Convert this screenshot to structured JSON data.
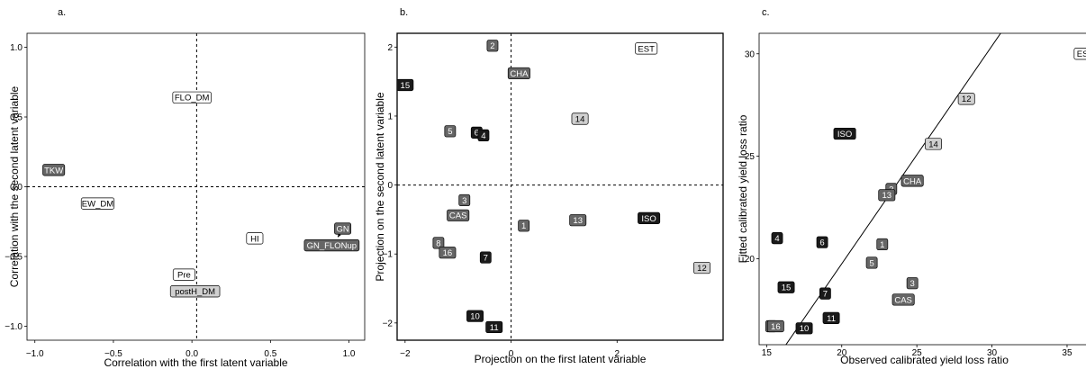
{
  "chart_data": [
    {
      "panel": "a.",
      "type": "scatter",
      "xlabel": "Correlation with the first latent variable",
      "ylabel": "Correlation with the second latent variable",
      "xlim": [
        -1.05,
        1.1
      ],
      "ylim": [
        -1.1,
        1.1
      ],
      "xticks": [
        -1.0,
        -0.5,
        0.0,
        0.5,
        1.0
      ],
      "yticks": [
        -1.0,
        -0.5,
        0.0,
        0.5,
        1.0
      ],
      "xtick_labels": [
        "−1.0",
        "−0.5",
        "0.0",
        "0.5",
        "1.0"
      ],
      "ytick_labels": [
        "−1.0",
        "−0.5",
        "0.0",
        "0.5",
        "1.0"
      ],
      "ref_lines": {
        "x": 0.03,
        "y": 0.0
      },
      "points": [
        {
          "label": "TKW",
          "x": -0.88,
          "y": 0.12,
          "style": "mid"
        },
        {
          "label": "FLO_DM",
          "x": 0.0,
          "y": 0.64,
          "style": "white"
        },
        {
          "label": "EW_DM",
          "x": -0.6,
          "y": -0.12,
          "style": "white"
        },
        {
          "label": "HI",
          "x": 0.4,
          "y": -0.37,
          "style": "white"
        },
        {
          "label": "GN",
          "x": 0.96,
          "y": -0.3,
          "style": "mid"
        },
        {
          "label": "GN_FLONup",
          "x": 0.89,
          "y": -0.42,
          "style": "mid"
        },
        {
          "label": "Pre",
          "x": -0.05,
          "y": -0.63,
          "style": "white"
        },
        {
          "label": "postH_DM",
          "x": 0.02,
          "y": -0.75,
          "style": "light"
        }
      ],
      "arrows": [
        {
          "x1": 0.96,
          "y1": -0.3,
          "x2": 0.93,
          "y2": -0.36
        }
      ]
    },
    {
      "panel": "b.",
      "type": "scatter",
      "xlabel": "Projection on the first latent variable",
      "ylabel": "Projection on the second latent variable",
      "xlim": [
        -2.15,
        4.0
      ],
      "ylim": [
        -2.25,
        2.2
      ],
      "xticks": [
        -2,
        0,
        2
      ],
      "yticks": [
        -2,
        -1,
        0,
        1,
        2
      ],
      "xtick_labels": [
        "−2",
        "0",
        "2"
      ],
      "ytick_labels": [
        "−2",
        "−1",
        "0",
        "1",
        "2"
      ],
      "ref_lines": {
        "x": 0.0,
        "y": 0.0
      },
      "points": [
        {
          "label": "2",
          "x": -0.35,
          "y": 2.02,
          "style": "mid"
        },
        {
          "label": "EST",
          "x": 2.55,
          "y": 1.98,
          "style": "white"
        },
        {
          "label": "15",
          "x": -2.0,
          "y": 1.45,
          "style": "black"
        },
        {
          "label": "CHA",
          "x": 0.15,
          "y": 1.62,
          "style": "mid"
        },
        {
          "label": "14",
          "x": 1.3,
          "y": 0.96,
          "style": "light"
        },
        {
          "label": "5",
          "x": -1.15,
          "y": 0.78,
          "style": "mid"
        },
        {
          "label": "6",
          "x": -0.65,
          "y": 0.76,
          "style": "black"
        },
        {
          "label": "4",
          "x": -0.52,
          "y": 0.72,
          "style": "black"
        },
        {
          "label": "3",
          "x": -0.88,
          "y": -0.22,
          "style": "mid"
        },
        {
          "label": "CAS",
          "x": -1.0,
          "y": -0.44,
          "style": "mid"
        },
        {
          "label": "1",
          "x": 0.24,
          "y": -0.59,
          "style": "mid"
        },
        {
          "label": "13",
          "x": 1.26,
          "y": -0.51,
          "style": "mid"
        },
        {
          "label": "ISO",
          "x": 2.6,
          "y": -0.48,
          "style": "black"
        },
        {
          "label": "8",
          "x": -1.37,
          "y": -0.84,
          "style": "mid"
        },
        {
          "label": "16",
          "x": -1.2,
          "y": -0.98,
          "style": "mid"
        },
        {
          "label": "7",
          "x": -0.48,
          "y": -1.05,
          "style": "black"
        },
        {
          "label": "12",
          "x": 3.6,
          "y": -1.2,
          "style": "light"
        },
        {
          "label": "10",
          "x": -0.68,
          "y": -1.9,
          "style": "black"
        },
        {
          "label": "11",
          "x": -0.32,
          "y": -2.06,
          "style": "black"
        }
      ]
    },
    {
      "panel": "c.",
      "type": "scatter",
      "xlabel": "Observed calibrated yield loss ratio",
      "ylabel": "Fitted calibrated yield loss ratio",
      "xlim": [
        14.5,
        36.5
      ],
      "ylim": [
        15.8,
        31.0
      ],
      "xticks": [
        15,
        20,
        25,
        30,
        35
      ],
      "yticks": [
        20,
        25,
        30
      ],
      "xtick_labels": [
        "15",
        "20",
        "25",
        "30",
        "35"
      ],
      "ytick_labels": [
        "20",
        "25",
        "30"
      ],
      "fit_line": {
        "x1": 14.5,
        "y1": 13.9,
        "x2": 36.5,
        "y2": 37.3
      },
      "points": [
        {
          "label": "EST",
          "x": 36.2,
          "y": 30.0,
          "style": "white"
        },
        {
          "label": "12",
          "x": 28.3,
          "y": 27.8,
          "style": "light"
        },
        {
          "label": "ISO",
          "x": 20.2,
          "y": 26.1,
          "style": "black"
        },
        {
          "label": "14",
          "x": 26.1,
          "y": 25.6,
          "style": "light"
        },
        {
          "label": "CHA",
          "x": 24.7,
          "y": 23.8,
          "style": "mid"
        },
        {
          "label": "2",
          "x": 23.3,
          "y": 23.4,
          "style": "mid"
        },
        {
          "label": "13",
          "x": 23.0,
          "y": 23.1,
          "style": "mid"
        },
        {
          "label": "4",
          "x": 15.7,
          "y": 21.0,
          "style": "black"
        },
        {
          "label": "6",
          "x": 18.7,
          "y": 20.8,
          "style": "black"
        },
        {
          "label": "1",
          "x": 22.7,
          "y": 20.7,
          "style": "mid"
        },
        {
          "label": "5",
          "x": 22.0,
          "y": 19.8,
          "style": "mid"
        },
        {
          "label": "15",
          "x": 16.3,
          "y": 18.6,
          "style": "black"
        },
        {
          "label": "3",
          "x": 24.7,
          "y": 18.8,
          "style": "mid"
        },
        {
          "label": "7",
          "x": 18.9,
          "y": 18.3,
          "style": "black"
        },
        {
          "label": "CAS",
          "x": 24.1,
          "y": 18.0,
          "style": "mid"
        },
        {
          "label": "11",
          "x": 19.3,
          "y": 17.1,
          "style": "black"
        },
        {
          "label": "8",
          "x": 15.3,
          "y": 16.7,
          "style": "mid"
        },
        {
          "label": "16",
          "x": 15.6,
          "y": 16.7,
          "style": "mid"
        },
        {
          "label": "10",
          "x": 17.5,
          "y": 16.6,
          "style": "black"
        }
      ]
    }
  ],
  "styles": {
    "black": {
      "fill": "#1a1a1a",
      "text": "#ffffff"
    },
    "mid": {
      "fill": "#666666",
      "text": "#ffffff"
    },
    "light": {
      "fill": "#d0d0d0",
      "text": "#000000"
    },
    "white": {
      "fill": "#ffffff",
      "text": "#000000"
    }
  }
}
